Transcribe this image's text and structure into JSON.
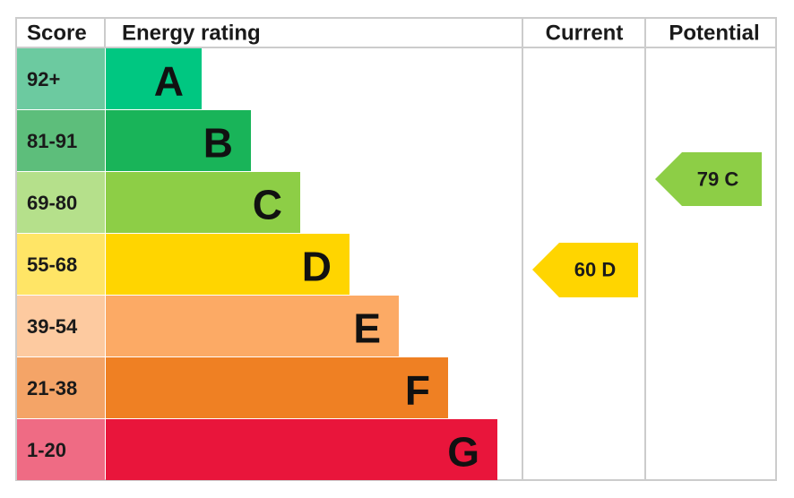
{
  "header": {
    "score": "Score",
    "energy_rating": "Energy rating",
    "current": "Current",
    "potential": "Potential"
  },
  "bands": [
    {
      "score": "92+",
      "letter": "A",
      "color": "#00c781",
      "score_color": "#6ccaa0"
    },
    {
      "score": "81-91",
      "letter": "B",
      "color": "#19b459",
      "score_color": "#5dbe7b"
    },
    {
      "score": "69-80",
      "letter": "C",
      "color": "#8dce46",
      "score_color": "#b5e08b"
    },
    {
      "score": "55-68",
      "letter": "D",
      "color": "#ffd500",
      "score_color": "#ffe566"
    },
    {
      "score": "39-54",
      "letter": "E",
      "color": "#fcaa65",
      "score_color": "#fdcaa0"
    },
    {
      "score": "21-38",
      "letter": "F",
      "color": "#ef8023",
      "score_color": "#f4a467"
    },
    {
      "score": "1-20",
      "letter": "G",
      "color": "#e9153b",
      "score_color": "#ef6b84"
    }
  ],
  "current": {
    "label": "60 D",
    "color": "#ffd500"
  },
  "potential": {
    "label": "79 C",
    "color": "#8dce46"
  }
}
